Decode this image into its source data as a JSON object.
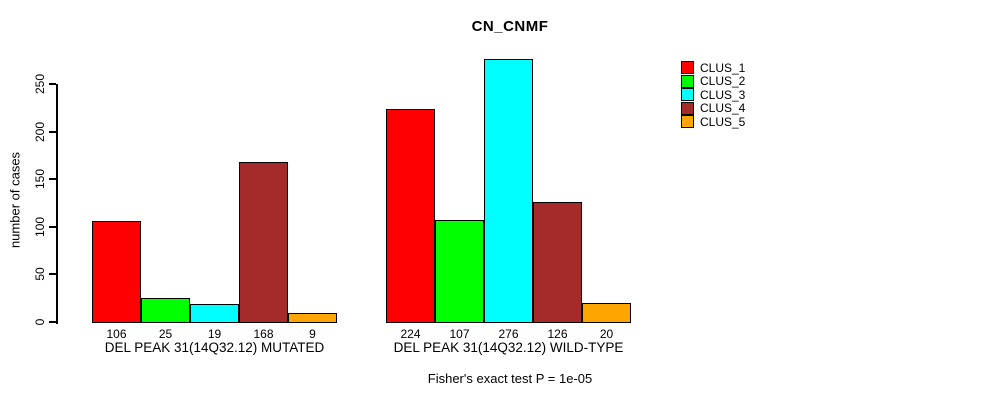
{
  "chart_data": {
    "type": "bar",
    "title": "CN_CNMF",
    "ylabel": "number of cases",
    "xlabel": "",
    "yticks": [
      0,
      50,
      100,
      150,
      200,
      250
    ],
    "ylim": [
      0,
      278
    ],
    "grid": false,
    "legend_position": "top-right",
    "legend_entries": [
      "CLUS_1",
      "CLUS_2",
      "CLUS_3",
      "CLUS_4",
      "CLUS_5"
    ],
    "categories": [
      "DEL PEAK 31(14Q32.12) MUTATED",
      "DEL PEAK 31(14Q32.12) WILD-TYPE"
    ],
    "series": [
      {
        "name": "CLUS_1",
        "color": "#FF0000",
        "values": [
          106,
          224
        ]
      },
      {
        "name": "CLUS_2",
        "color": "#00FF00",
        "values": [
          25,
          107
        ]
      },
      {
        "name": "CLUS_3",
        "color": "#00FFFF",
        "values": [
          19,
          276
        ]
      },
      {
        "name": "CLUS_4",
        "color": "#A52A2A",
        "values": [
          168,
          126
        ]
      },
      {
        "name": "CLUS_5",
        "color": "#FFA500",
        "values": [
          9,
          20
        ]
      }
    ],
    "bar_value_labels": [
      [
        106,
        25,
        19,
        168,
        9
      ],
      [
        224,
        107,
        276,
        126,
        20
      ]
    ],
    "annotation": "Fisher's exact test P = 1e-05"
  }
}
